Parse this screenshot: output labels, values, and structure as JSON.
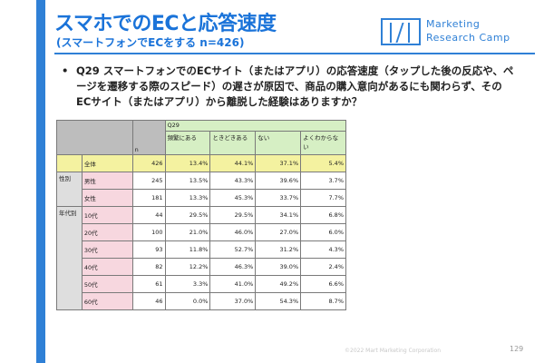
{
  "slide": {
    "title": "スマホでのECと応答速度",
    "subtitle": "(スマートフォンでECをする n=426)",
    "logo": {
      "line1": "Marketing",
      "line2": "Research Camp"
    },
    "bullet": "•",
    "question": "Q29 スマートフォンでのECサイト（またはアプリ）の応答速度（タップした後の反応や、ページを遷移する際のスピード）の遅さが原因で、商品の購入意向があるにも関わらず、そのECサイト（またはアプリ）から離脱した経験はありますか？",
    "copyright": "©2022 Mart Marketing Corporation",
    "page_number": "129"
  },
  "table": {
    "n_header": "n",
    "question_header": "Q29",
    "columns": [
      "頻繁にある",
      "ときどきある",
      "ない",
      "よくわからない"
    ],
    "total": {
      "label": "全体",
      "n": "426",
      "values": [
        "13.4%",
        "44.1%",
        "37.1%",
        "5.4%"
      ]
    },
    "groups": [
      {
        "label": "性別",
        "rows": [
          {
            "label": "男性",
            "n": "245",
            "values": [
              "13.5%",
              "43.3%",
              "39.6%",
              "3.7%"
            ]
          },
          {
            "label": "女性",
            "n": "181",
            "values": [
              "13.3%",
              "45.3%",
              "33.7%",
              "7.7%"
            ]
          }
        ]
      },
      {
        "label": "年代別",
        "rows": [
          {
            "label": "10代",
            "n": "44",
            "values": [
              "29.5%",
              "29.5%",
              "34.1%",
              "6.8%"
            ]
          },
          {
            "label": "20代",
            "n": "100",
            "values": [
              "21.0%",
              "46.0%",
              "27.0%",
              "6.0%"
            ]
          },
          {
            "label": "30代",
            "n": "93",
            "values": [
              "11.8%",
              "52.7%",
              "31.2%",
              "4.3%"
            ]
          },
          {
            "label": "40代",
            "n": "82",
            "values": [
              "12.2%",
              "46.3%",
              "39.0%",
              "2.4%"
            ]
          },
          {
            "label": "50代",
            "n": "61",
            "values": [
              "3.3%",
              "41.0%",
              "49.2%",
              "6.6%"
            ]
          },
          {
            "label": "60代",
            "n": "46",
            "values": [
              "0.0%",
              "37.0%",
              "54.3%",
              "8.7%"
            ]
          }
        ]
      }
    ]
  },
  "colors": {
    "accent": "#1a73d9",
    "total_row": "#f4f2a0",
    "header_green": "#d6efc4",
    "label_pink": "#f7d7df"
  }
}
